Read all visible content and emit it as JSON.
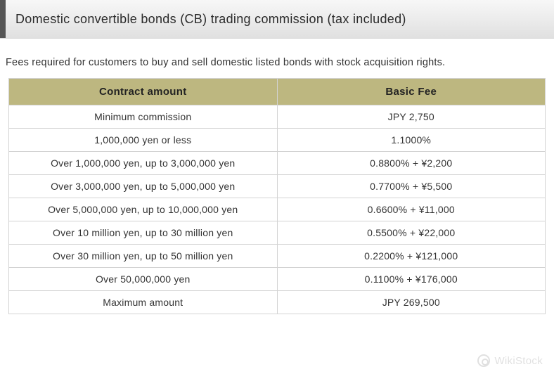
{
  "header": {
    "title": "Domestic convertible bonds (CB) trading commission (tax included)",
    "bar_color": "#555555",
    "bg_gradient_top": "#f7f7f7",
    "bg_gradient_bottom": "#e0e0e0",
    "title_color": "#2b2b2b",
    "title_fontsize": 18
  },
  "subtext": {
    "text": "Fees required for customers to buy and sell domestic listed bonds with stock acquisition rights.",
    "color": "#333333",
    "fontsize": 14.5
  },
  "table": {
    "header_bg": "#bdb780",
    "header_text_color": "#222222",
    "header_fontsize": 15,
    "cell_fontsize": 14,
    "cell_text_color": "#333333",
    "border_color": "#d3d3d3",
    "columns": [
      {
        "label": "Contract amount",
        "width_pct": 50
      },
      {
        "label": "Basic Fee",
        "width_pct": 50
      }
    ],
    "rows": [
      [
        "Minimum commission",
        "JPY 2,750"
      ],
      [
        "1,000,000 yen or less",
        "1.1000%"
      ],
      [
        "Over 1,000,000 yen, up to 3,000,000 yen",
        "0.8800% + ¥2,200"
      ],
      [
        "Over 3,000,000 yen, up to 5,000,000 yen",
        "0.7700% + ¥5,500"
      ],
      [
        "Over 5,000,000 yen, up to 10,000,000 yen",
        "0.6600% + ¥11,000"
      ],
      [
        "Over 10 million yen, up to 30 million yen",
        "0.5500% + ¥22,000"
      ],
      [
        "Over 30 million yen, up to 50 million yen",
        "0.2200% + ¥121,000"
      ],
      [
        "Over 50,000,000 yen",
        "0.1100% + ¥176,000"
      ],
      [
        "Maximum amount",
        "JPY 269,500"
      ]
    ]
  },
  "watermark": {
    "text": "WikiStock",
    "color": "#888888",
    "opacity": 0.25
  }
}
